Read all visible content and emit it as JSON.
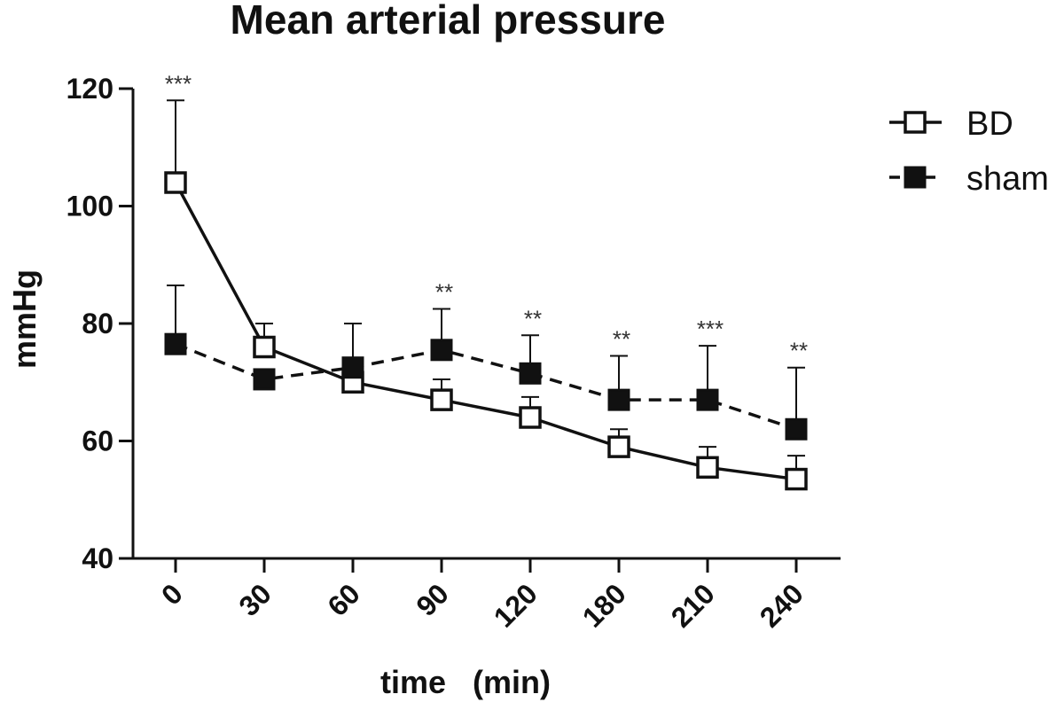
{
  "chart_data": {
    "type": "line",
    "title": "Mean arterial pressure",
    "xlabel": "time   (min)",
    "ylabel": "mmHg",
    "categories": [
      "0",
      "30",
      "60",
      "90",
      "120",
      "180",
      "210",
      "240"
    ],
    "ylim": [
      40,
      120
    ],
    "yticks": [
      "40",
      "60",
      "80",
      "100",
      "120"
    ],
    "series": [
      {
        "name": "BD",
        "marker": "open-square",
        "line": "solid",
        "values": [
          104,
          76,
          70,
          67,
          64,
          59,
          55.5,
          53.5
        ],
        "error_upper": [
          118,
          80,
          72,
          70.5,
          67.5,
          62,
          59,
          57.5
        ]
      },
      {
        "name": "sham",
        "marker": "filled-square",
        "line": "dashed",
        "values": [
          76.5,
          70.5,
          72.5,
          75.5,
          71.5,
          67,
          67,
          62
        ],
        "error_upper": [
          86.5,
          70.5,
          80,
          82.5,
          78,
          74.5,
          76.2,
          72.5
        ]
      }
    ],
    "annotations": [
      "***",
      "",
      "",
      "**",
      "**",
      "**",
      "***",
      "**"
    ],
    "legend": "top-right",
    "grid": false
  }
}
